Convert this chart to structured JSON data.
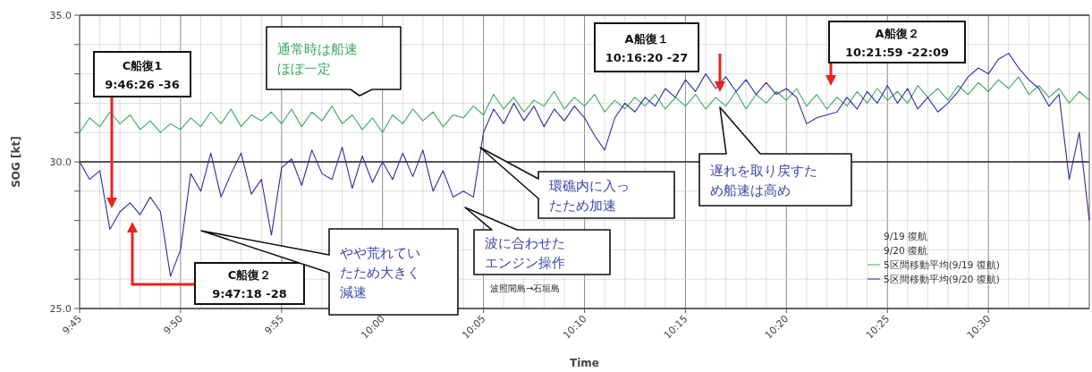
{
  "chart_data": {
    "type": "line",
    "xlabel": "Time",
    "ylabel": "SOG [kt]",
    "x": [
      9.75,
      9.7583,
      9.7667,
      9.775,
      9.7833,
      9.7917,
      9.8,
      9.8083,
      9.8167,
      9.825,
      9.8333,
      9.8417,
      9.85,
      9.8583,
      9.8667,
      9.875,
      9.8833,
      9.8917,
      9.9,
      9.9083,
      9.9167,
      9.925,
      9.9333,
      9.9417,
      9.95,
      9.9583,
      9.9667,
      9.975,
      9.9833,
      9.9917,
      10.0,
      10.0083,
      10.0167,
      10.025,
      10.0333,
      10.0417,
      10.05,
      10.0583,
      10.0667,
      10.075,
      10.0833,
      10.0917,
      10.1,
      10.1083,
      10.1167,
      10.125,
      10.1333,
      10.1417,
      10.15,
      10.1583,
      10.1667,
      10.175,
      10.1833,
      10.1917,
      10.2,
      10.2083,
      10.2167,
      10.225,
      10.2333,
      10.2417,
      10.25,
      10.2583,
      10.2667,
      10.275,
      10.2833,
      10.2917,
      10.3,
      10.3083,
      10.3167,
      10.325,
      10.3333,
      10.3417,
      10.35,
      10.3583,
      10.3667,
      10.375,
      10.3833,
      10.3917,
      10.4,
      10.4083,
      10.4167,
      10.425,
      10.4333,
      10.4417,
      10.45,
      10.4583,
      10.4667,
      10.475,
      10.4833,
      10.4917,
      10.5,
      10.5083,
      10.5167,
      10.525,
      10.5333,
      10.5417,
      10.55,
      10.5583,
      10.5667,
      10.575,
      10.5833
    ],
    "series": [
      {
        "name": "5区間移動平均(9/19 復航)",
        "color": "#3aa860",
        "values": [
          31.0,
          31.5,
          31.2,
          31.7,
          31.3,
          31.6,
          31.1,
          31.4,
          31.0,
          31.3,
          31.1,
          31.5,
          31.2,
          31.7,
          31.3,
          31.8,
          31.2,
          31.6,
          31.4,
          31.7,
          31.3,
          31.8,
          31.2,
          31.7,
          31.4,
          31.9,
          31.3,
          31.6,
          31.1,
          31.5,
          31.0,
          31.6,
          31.3,
          31.8,
          31.4,
          31.7,
          31.2,
          31.6,
          31.5,
          31.9,
          31.6,
          32.3,
          31.8,
          32.2,
          31.7,
          32.1,
          31.9,
          32.4,
          31.8,
          32.2,
          31.9,
          32.3,
          31.7,
          32.1,
          31.8,
          32.2,
          31.9,
          32.3,
          31.8,
          32.2,
          31.9,
          32.3,
          31.8,
          32.2,
          31.9,
          32.4,
          31.8,
          32.3,
          32.0,
          32.4,
          32.1,
          32.5,
          31.9,
          32.3,
          31.8,
          32.2,
          31.9,
          32.4,
          32.0,
          32.5,
          32.1,
          32.4,
          32.0,
          32.6,
          32.2,
          32.5,
          32.1,
          32.6,
          32.3,
          32.7,
          32.4,
          32.8,
          32.5,
          32.9,
          32.3,
          32.6,
          32.2,
          32.5,
          32.0,
          32.4,
          32.1
        ]
      },
      {
        "name": "5区間移動平均(9/20 復航)",
        "color": "#2b2f9e",
        "values": [
          30.0,
          29.4,
          29.7,
          27.7,
          28.3,
          28.6,
          28.2,
          28.8,
          28.3,
          26.1,
          27.0,
          29.6,
          29.0,
          30.3,
          28.8,
          29.6,
          30.3,
          28.9,
          29.4,
          27.5,
          29.8,
          30.1,
          29.2,
          30.4,
          29.6,
          29.4,
          30.5,
          29.1,
          30.2,
          29.3,
          30.0,
          29.4,
          30.3,
          29.5,
          30.4,
          29.0,
          29.7,
          28.8,
          29.0,
          28.8,
          31.0,
          31.8,
          31.3,
          32.0,
          31.4,
          31.9,
          31.2,
          31.8,
          31.4,
          31.9,
          31.5,
          30.9,
          30.4,
          31.5,
          32.0,
          31.7,
          32.2,
          31.9,
          32.5,
          32.2,
          32.8,
          32.4,
          33.0,
          32.5,
          32.9,
          32.4,
          32.8,
          32.3,
          32.7,
          32.3,
          32.5,
          32.2,
          31.3,
          31.5,
          31.6,
          31.7,
          32.2,
          31.8,
          32.4,
          32.0,
          32.6,
          32.0,
          32.5,
          31.8,
          32.2,
          31.7,
          32.0,
          32.4,
          32.9,
          33.2,
          33.0,
          33.5,
          33.7,
          33.2,
          32.8,
          32.5,
          31.9,
          32.3,
          29.4,
          31.0,
          28.0
        ]
      }
    ],
    "xlim": [
      9.75,
      10.5833
    ],
    "xticks": [
      {
        "value": 9.75,
        "label": "9:45"
      },
      {
        "value": 9.7667,
        "label": null
      },
      {
        "value": 9.7833,
        "label": null
      },
      {
        "value": 9.8,
        "label": null
      },
      {
        "value": 9.8167,
        "label": null
      },
      {
        "value": 9.8333,
        "label": "9:50"
      },
      {
        "value": 9.85,
        "label": null
      },
      {
        "value": 9.8667,
        "label": null
      },
      {
        "value": 9.8833,
        "label": null
      },
      {
        "value": 9.9,
        "label": null
      },
      {
        "value": 9.9167,
        "label": "9:55"
      },
      {
        "value": 9.9333,
        "label": null
      },
      {
        "value": 9.95,
        "label": null
      },
      {
        "value": 9.9667,
        "label": null
      },
      {
        "value": 9.9833,
        "label": null
      },
      {
        "value": 10.0,
        "label": "10:00"
      },
      {
        "value": 10.0167,
        "label": null
      },
      {
        "value": 10.0333,
        "label": null
      },
      {
        "value": 10.05,
        "label": null
      },
      {
        "value": 10.0667,
        "label": null
      },
      {
        "value": 10.0833,
        "label": "10:05"
      },
      {
        "value": 10.1,
        "label": null
      },
      {
        "value": 10.1167,
        "label": null
      },
      {
        "value": 10.1333,
        "label": null
      },
      {
        "value": 10.15,
        "label": null
      },
      {
        "value": 10.1667,
        "label": "10:10"
      },
      {
        "value": 10.1833,
        "label": null
      },
      {
        "value": 10.2,
        "label": null
      },
      {
        "value": 10.2167,
        "label": null
      },
      {
        "value": 10.2333,
        "label": null
      },
      {
        "value": 10.25,
        "label": "10:15"
      },
      {
        "value": 10.2667,
        "label": null
      },
      {
        "value": 10.2833,
        "label": null
      },
      {
        "value": 10.3,
        "label": null
      },
      {
        "value": 10.3167,
        "label": null
      },
      {
        "value": 10.3333,
        "label": "10:20"
      },
      {
        "value": 10.35,
        "label": null
      },
      {
        "value": 10.3667,
        "label": null
      },
      {
        "value": 10.3833,
        "label": null
      },
      {
        "value": 10.4,
        "label": null
      },
      {
        "value": 10.4167,
        "label": "10:25"
      },
      {
        "value": 10.4333,
        "label": null
      },
      {
        "value": 10.45,
        "label": null
      },
      {
        "value": 10.4667,
        "label": null
      },
      {
        "value": 10.4833,
        "label": null
      },
      {
        "value": 10.5,
        "label": "10:30"
      },
      {
        "value": 10.5167,
        "label": null
      },
      {
        "value": 10.5333,
        "label": null
      },
      {
        "value": 10.55,
        "label": null
      },
      {
        "value": 10.5667,
        "label": null
      }
    ],
    "ylim": [
      25,
      35
    ],
    "yticks": [
      {
        "value": 25,
        "label": "25.0"
      },
      {
        "value": 26,
        "label": null
      },
      {
        "value": 27,
        "label": null
      },
      {
        "value": 28,
        "label": null
      },
      {
        "value": 29,
        "label": null
      },
      {
        "value": 30,
        "label": "30.0"
      },
      {
        "value": 31,
        "label": null
      },
      {
        "value": 32,
        "label": null
      },
      {
        "value": 33,
        "label": null
      },
      {
        "value": 34,
        "label": null
      },
      {
        "value": 35,
        "label": "35.0"
      }
    ],
    "grid": true,
    "legend": "bottom right",
    "marker": "none",
    "line_style": "solid",
    "ref_lines": [
      {
        "axis": "y",
        "value": 30,
        "color": "#222222"
      }
    ],
    "annotations": [
      "C船復1 9:46:26 -36",
      "C船復２ 9:47:18 -28",
      "A船復１ 10:16:20 -27",
      "A船復２ 10:21:59 -22:09",
      "通常時は船速ほぼ一定",
      "やや荒れていたため大きく減速",
      "波に合わせたエンジン操作",
      "環礁内に入ったため加速",
      "遅れを取り戻すため船速は高め",
      "波照間島→石垣島",
      "9/19 復航",
      "9/20 復航"
    ]
  }
}
